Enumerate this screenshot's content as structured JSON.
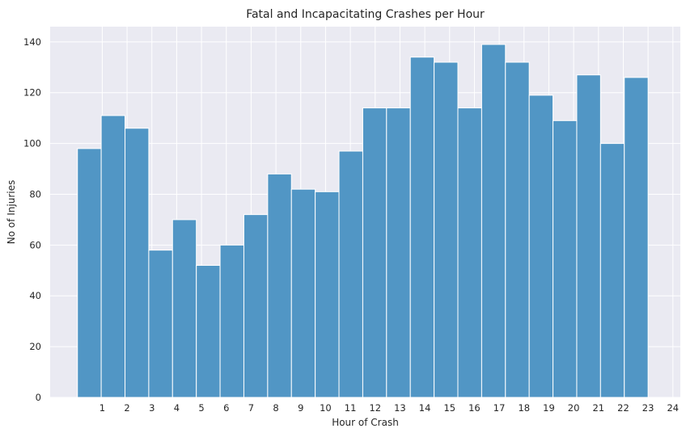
{
  "chart_data": {
    "type": "bar",
    "title": "Fatal and Incapacitating Crashes per Hour",
    "xlabel": "Hour of Crash",
    "ylabel": "No of Injuries",
    "xlim": [
      -1.1,
      24.3
    ],
    "ylim": [
      0,
      146
    ],
    "xticks": [
      1,
      2,
      3,
      4,
      5,
      6,
      7,
      8,
      9,
      10,
      11,
      12,
      13,
      14,
      15,
      16,
      17,
      18,
      19,
      20,
      21,
      22,
      23,
      24
    ],
    "yticks": [
      0,
      20,
      40,
      60,
      80,
      100,
      120,
      140
    ],
    "grid": true,
    "bins": [
      {
        "from": 0.0,
        "to": 0.958,
        "value": 98
      },
      {
        "from": 0.958,
        "to": 1.917,
        "value": 111
      },
      {
        "from": 1.917,
        "to": 2.875,
        "value": 106
      },
      {
        "from": 2.875,
        "to": 3.833,
        "value": 58
      },
      {
        "from": 3.833,
        "to": 4.792,
        "value": 70
      },
      {
        "from": 4.792,
        "to": 5.75,
        "value": 52
      },
      {
        "from": 5.75,
        "to": 6.708,
        "value": 60
      },
      {
        "from": 6.708,
        "to": 7.667,
        "value": 72
      },
      {
        "from": 7.667,
        "to": 8.625,
        "value": 88
      },
      {
        "from": 8.625,
        "to": 9.583,
        "value": 82
      },
      {
        "from": 9.583,
        "to": 10.542,
        "value": 81
      },
      {
        "from": 10.542,
        "to": 11.5,
        "value": 97
      },
      {
        "from": 11.5,
        "to": 12.458,
        "value": 114
      },
      {
        "from": 12.458,
        "to": 13.417,
        "value": 114
      },
      {
        "from": 13.417,
        "to": 14.375,
        "value": 134
      },
      {
        "from": 14.375,
        "to": 15.333,
        "value": 132
      },
      {
        "from": 15.333,
        "to": 16.292,
        "value": 114
      },
      {
        "from": 16.292,
        "to": 17.25,
        "value": 139
      },
      {
        "from": 17.25,
        "to": 18.208,
        "value": 132
      },
      {
        "from": 18.208,
        "to": 19.167,
        "value": 119
      },
      {
        "from": 19.167,
        "to": 20.125,
        "value": 109
      },
      {
        "from": 20.125,
        "to": 21.083,
        "value": 127
      },
      {
        "from": 21.083,
        "to": 22.042,
        "value": 100
      },
      {
        "from": 22.042,
        "to": 23.0,
        "value": 126
      }
    ],
    "colors": {
      "bar_fill": "#5196c5",
      "bar_edge": "#ffffff",
      "plot_background": "#eaeaf2",
      "grid": "#ffffff",
      "text": "#262626"
    }
  }
}
